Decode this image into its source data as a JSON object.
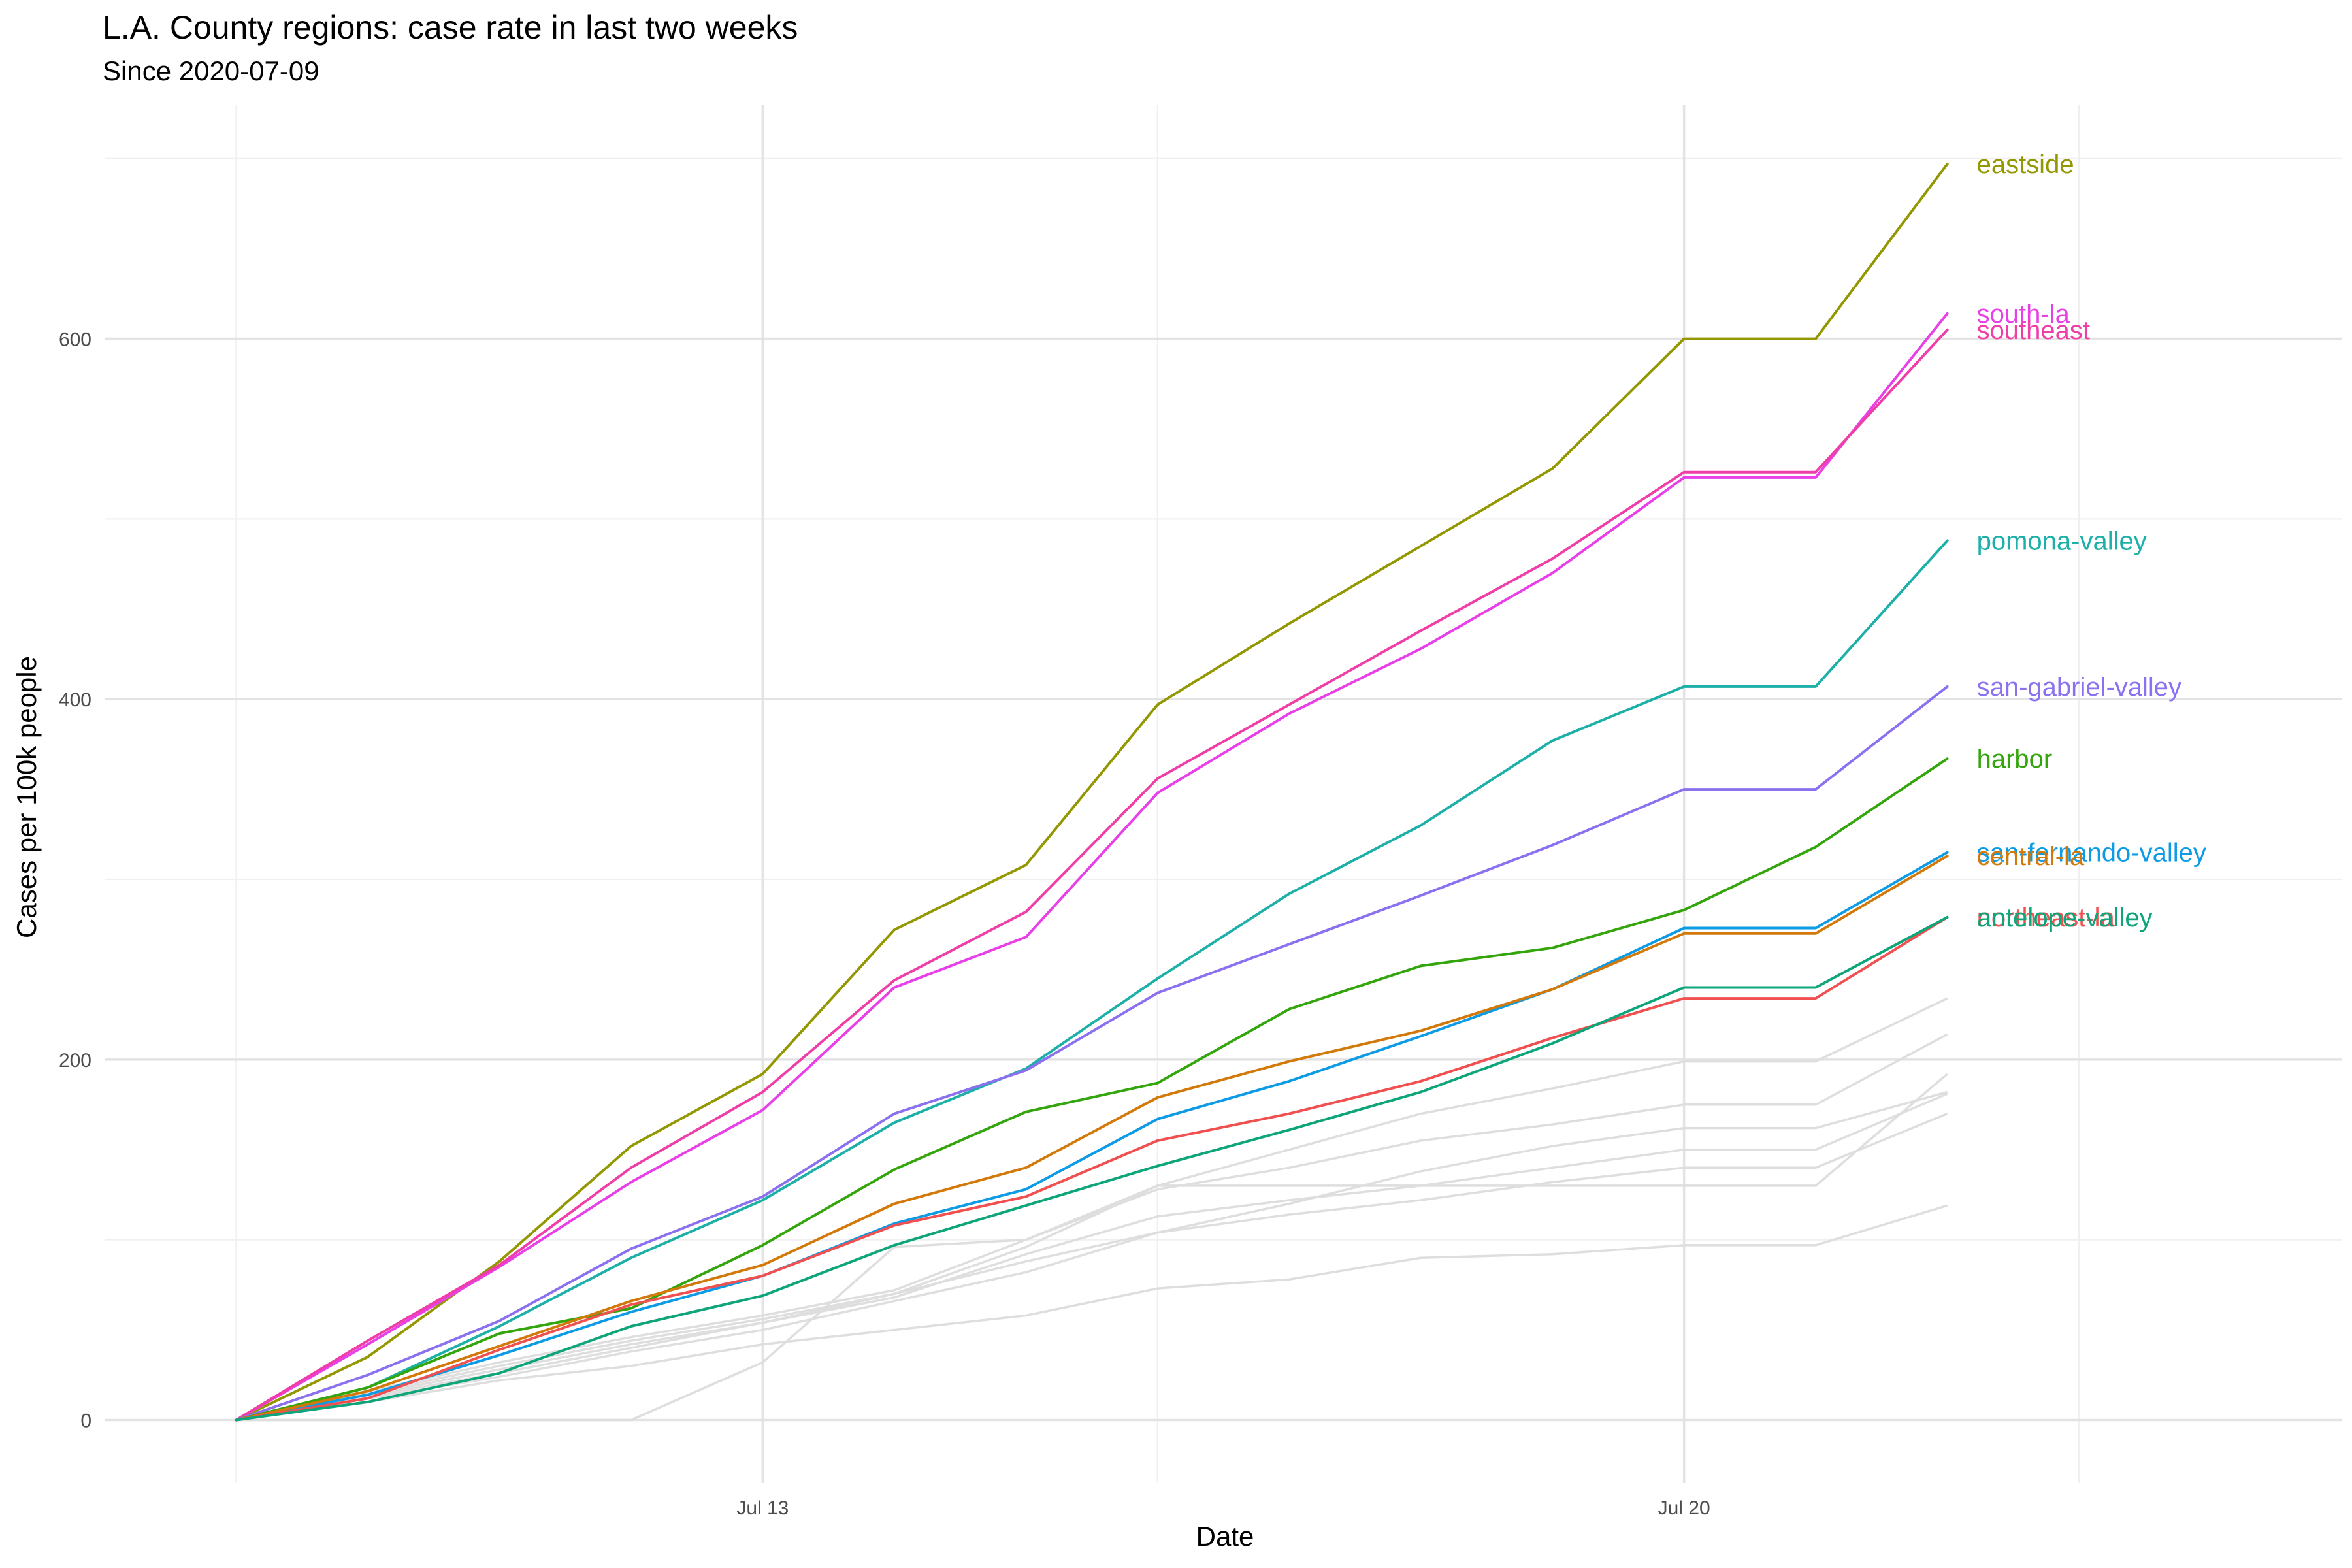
{
  "chart_data": {
    "type": "line",
    "title": "L.A. County regions: case rate in last two weeks",
    "subtitle": "Since 2020-07-09",
    "xlabel": "Date",
    "ylabel": "Cases per 100k people",
    "x": [
      "2020-07-09",
      "2020-07-10",
      "2020-07-11",
      "2020-07-12",
      "2020-07-13",
      "2020-07-14",
      "2020-07-15",
      "2020-07-16",
      "2020-07-17",
      "2020-07-18",
      "2020-07-19",
      "2020-07-20",
      "2020-07-21",
      "2020-07-22"
    ],
    "xlim": [
      "2020-07-08",
      "2020-07-25"
    ],
    "ylim": [
      -35,
      730
    ],
    "x_ticks": [
      {
        "date": "2020-07-13",
        "label": "Jul 13"
      },
      {
        "date": "2020-07-20",
        "label": "Jul 20"
      }
    ],
    "x_minor_ticks": [
      "2020-07-09",
      "2020-07-16",
      "2020-07-23"
    ],
    "y_ticks": [
      0,
      200,
      400,
      600
    ],
    "y_minor_ticks": [
      100,
      300,
      500,
      700
    ],
    "grid": true,
    "legend": "none (series labeled at line ends)",
    "series": [
      {
        "name": "eastside",
        "color": "#939700",
        "values": [
          0,
          35,
          88,
          152,
          192,
          272,
          308,
          397,
          442,
          485,
          528,
          600,
          600,
          697
        ]
      },
      {
        "name": "south-la",
        "color": "#e83fe8",
        "values": [
          0,
          42,
          85,
          132,
          172,
          240,
          268,
          348,
          392,
          428,
          470,
          523,
          523,
          614
        ]
      },
      {
        "name": "southeast",
        "color": "#f03ea8",
        "values": [
          0,
          44,
          86,
          140,
          182,
          244,
          282,
          356,
          397,
          438,
          478,
          526,
          526,
          605
        ]
      },
      {
        "name": "pomona-valley",
        "color": "#1cb0a8",
        "values": [
          0,
          18,
          52,
          90,
          122,
          165,
          195,
          245,
          292,
          330,
          377,
          407,
          407,
          488
        ]
      },
      {
        "name": "san-gabriel-valley",
        "color": "#8b70f0",
        "values": [
          0,
          25,
          55,
          95,
          124,
          170,
          194,
          237,
          264,
          291,
          319,
          350,
          350,
          407
        ]
      },
      {
        "name": "harbor",
        "color": "#34a50c",
        "values": [
          0,
          18,
          48,
          62,
          97,
          139,
          171,
          187,
          228,
          252,
          262,
          283,
          318,
          367
        ]
      },
      {
        "name": "san-fernando-valley",
        "color": "#0d9be6",
        "values": [
          0,
          14,
          36,
          60,
          80,
          109,
          128,
          167,
          188,
          213,
          239,
          273,
          273,
          315
        ]
      },
      {
        "name": "central-la",
        "color": "#d2790a",
        "values": [
          0,
          16,
          41,
          66,
          86,
          120,
          140,
          179,
          199,
          216,
          239,
          270,
          270,
          313
        ]
      },
      {
        "name": "northeast-la",
        "color": "#f05050",
        "values": [
          0,
          12,
          39,
          64,
          80,
          108,
          124,
          155,
          170,
          188,
          212,
          234,
          234,
          279
        ]
      },
      {
        "name": "antelope-valley",
        "color": "#0fa57a",
        "values": [
          0,
          10,
          26,
          52,
          69,
          97,
          119,
          141,
          161,
          182,
          209,
          240,
          240,
          279
        ]
      }
    ],
    "background_series": [
      {
        "values": [
          0,
          15,
          30,
          44,
          56,
          70,
          96,
          130,
          150,
          170,
          184,
          199,
          199,
          234
        ]
      },
      {
        "values": [
          0,
          16,
          32,
          46,
          58,
          72,
          100,
          128,
          140,
          155,
          164,
          175,
          175,
          214
        ]
      },
      {
        "values": [
          0,
          14,
          28,
          42,
          54,
          68,
          92,
          113,
          122,
          130,
          140,
          150,
          150,
          181
        ]
      },
      {
        "values": [
          0,
          12,
          24,
          38,
          50,
          66,
          82,
          104,
          114,
          122,
          132,
          140,
          140,
          170
        ]
      },
      {
        "values": [
          0,
          0,
          0,
          0,
          32,
          96,
          100,
          130,
          130,
          130,
          130,
          130,
          130,
          192
        ]
      },
      {
        "values": [
          0,
          10,
          22,
          30,
          42,
          50,
          58,
          73,
          78,
          90,
          92,
          97,
          97,
          119
        ]
      },
      {
        "values": [
          0,
          13,
          26,
          40,
          54,
          70,
          88,
          104,
          120,
          138,
          152,
          162,
          162,
          182
        ]
      }
    ]
  }
}
